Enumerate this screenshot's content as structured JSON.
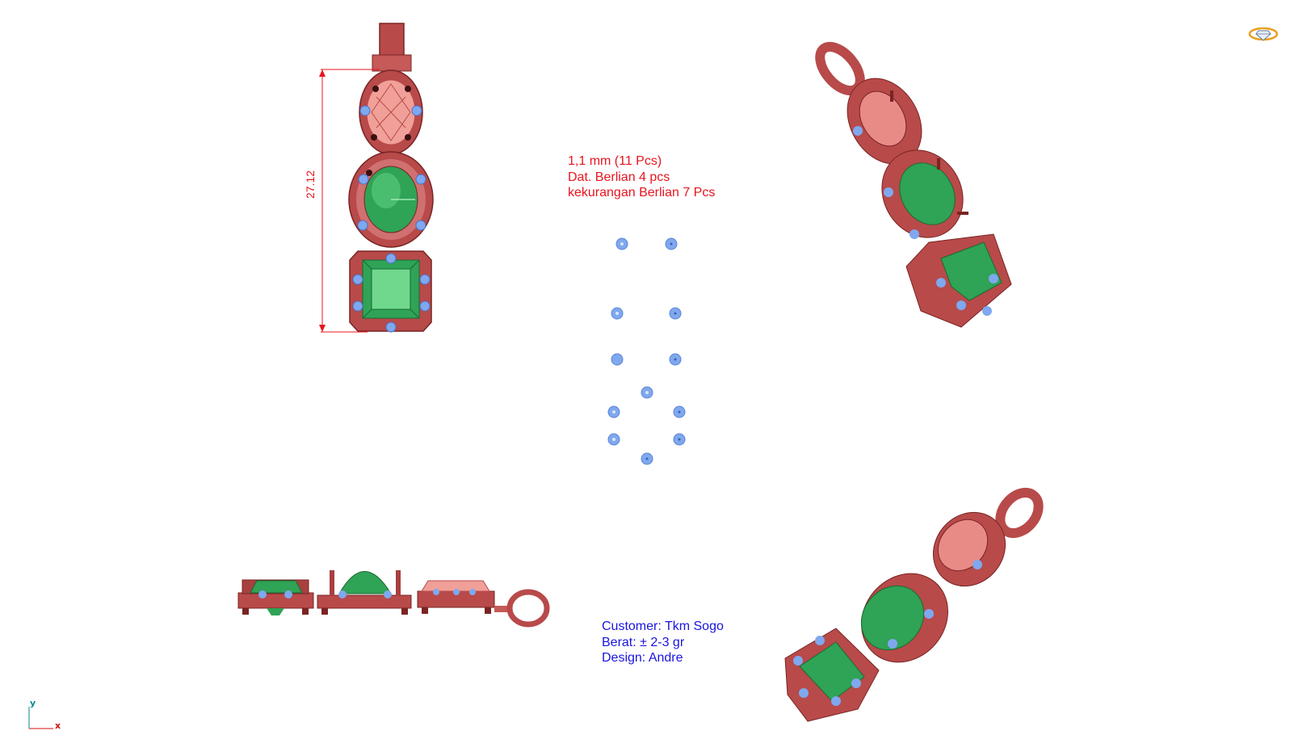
{
  "notes": {
    "stones": [
      "1,1 mm (11 Pcs)",
      "Dat. Berlian 4 pcs",
      "kekurangan Berlian 7 Pcs"
    ],
    "customer": [
      "Customer: Tkm Sogo",
      "Berat: ± 2-3 gr",
      "Design: Andre"
    ]
  },
  "dimension": {
    "value": "27.12"
  },
  "axes": {
    "y": "y",
    "x": "x"
  },
  "colors": {
    "metal": "#b84a4a",
    "metal_dark": "#7a2424",
    "metal_light": "#e88a86",
    "emerald": "#2fa356",
    "emerald_light": "#6fd88c",
    "diamond": "#7fa8ee",
    "dimension_line": "#e8141e",
    "note_red": "#e8141e",
    "note_blue": "#1a14e0"
  },
  "icons": {
    "corner": "diamond-ring-icon"
  }
}
